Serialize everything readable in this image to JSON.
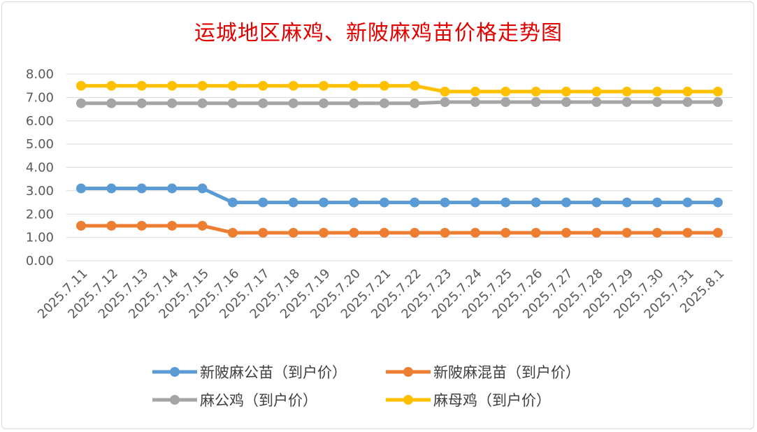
{
  "chart_data": {
    "type": "line",
    "title": "运城地区麻鸡、新陂麻鸡苗价格走势图",
    "xlabel": "",
    "ylabel": "",
    "ylim": [
      0,
      8
    ],
    "yticks": [
      "0.00",
      "1.00",
      "2.00",
      "3.00",
      "4.00",
      "5.00",
      "6.00",
      "7.00",
      "8.00"
    ],
    "grid": true,
    "legend_position": "bottom",
    "categories": [
      "2025.7.11",
      "2025.7.12",
      "2025.7.13",
      "2025.7.14",
      "2025.7.15",
      "2025.7.16",
      "2025.7.17",
      "2025.7.18",
      "2025.7.19",
      "2025.7.20",
      "2025.7.21",
      "2025.7.22",
      "2025.7.23",
      "2025.7.24",
      "2025.7.25",
      "2025.7.26",
      "2025.7.27",
      "2025.7.28",
      "2025.7.29",
      "2025.7.30",
      "2025.7.31",
      "2025.8.1"
    ],
    "series": [
      {
        "name": "新陂麻公苗（到户价）",
        "color": "#5b9bd5",
        "values": [
          3.1,
          3.1,
          3.1,
          3.1,
          3.1,
          2.5,
          2.5,
          2.5,
          2.5,
          2.5,
          2.5,
          2.5,
          2.5,
          2.5,
          2.5,
          2.5,
          2.5,
          2.5,
          2.5,
          2.5,
          2.5,
          2.5
        ]
      },
      {
        "name": "新陂麻混苗（到户价）",
        "color": "#ed7d31",
        "values": [
          1.5,
          1.5,
          1.5,
          1.5,
          1.5,
          1.2,
          1.2,
          1.2,
          1.2,
          1.2,
          1.2,
          1.2,
          1.2,
          1.2,
          1.2,
          1.2,
          1.2,
          1.2,
          1.2,
          1.2,
          1.2,
          1.2
        ]
      },
      {
        "name": "麻公鸡（到户价）",
        "color": "#a5a5a5",
        "values": [
          6.75,
          6.75,
          6.75,
          6.75,
          6.75,
          6.75,
          6.75,
          6.75,
          6.75,
          6.75,
          6.75,
          6.75,
          6.8,
          6.8,
          6.8,
          6.8,
          6.8,
          6.8,
          6.8,
          6.8,
          6.8,
          6.8
        ]
      },
      {
        "name": "麻母鸡（到户价）",
        "color": "#ffc000",
        "values": [
          7.5,
          7.5,
          7.5,
          7.5,
          7.5,
          7.5,
          7.5,
          7.5,
          7.5,
          7.5,
          7.5,
          7.5,
          7.25,
          7.25,
          7.25,
          7.25,
          7.25,
          7.25,
          7.25,
          7.25,
          7.25,
          7.25
        ]
      }
    ]
  }
}
